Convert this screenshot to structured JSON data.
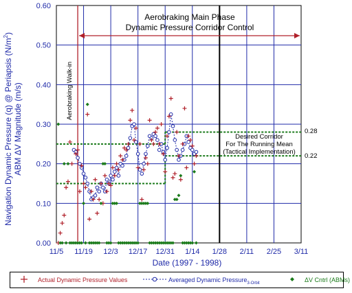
{
  "chart_data": {
    "type": "scatter",
    "title": "Aerobraking Main Phase",
    "subtitle": "Dynamic Pressure Corridor Control",
    "xlabel": "Date (1997 - 1998)",
    "ylabel_line1": "Navigation Dynamic Pressure (q) @ Periapsis (N/m",
    "ylabel_sup": "2",
    "ylabel_close": ")",
    "ylabel_line2": "ABM ΔV Magnitude (m/s)",
    "ylim": [
      0,
      0.6
    ],
    "xlim": [
      "11/5",
      "3/11"
    ],
    "x_tick_labels": [
      "11/5",
      "11/19",
      "12/3",
      "12/17",
      "12/31",
      "1/14",
      "1/28",
      "2/11",
      "2/25",
      "3/11"
    ],
    "y_tick_labels": [
      "0.00",
      "0.10",
      "0.20",
      "0.30",
      "0.40",
      "0.50",
      "0.60"
    ],
    "annotations": {
      "walk_in": "Aerobraking Walk-in",
      "corridor_line1": "Desired Corridor",
      "corridor_line2": "For The Running Mean",
      "corridor_line3": "(Tactical Implementation)",
      "upper_bound_label": "0.28",
      "lower_bound_label": "0.22"
    },
    "legend": {
      "actual": "Actual Dynamic Pressure Values",
      "averaged": "Averaged Dynamic Pressure",
      "averaged_sub": "3-Orbit",
      "dv": "ΔV Cntrl (ABMs)"
    },
    "series": [
      {
        "name": "Actual Dynamic Pressure Values",
        "marker": "plus",
        "color": "#b0202a",
        "points": [
          [
            1,
            0.0
          ],
          [
            2,
            0.025
          ],
          [
            3,
            0.05
          ],
          [
            4,
            0.07
          ],
          [
            5,
            0.14
          ],
          [
            6,
            0.155
          ],
          [
            7,
            0.255
          ],
          [
            8,
            0.2
          ],
          [
            10,
            0.225
          ],
          [
            11,
            0.235
          ],
          [
            12,
            0.13
          ],
          [
            13,
            0.195
          ],
          [
            14,
            0.15
          ],
          [
            15,
            0.14
          ],
          [
            16,
            0.325
          ],
          [
            17,
            0.06
          ],
          [
            18,
            0.13
          ],
          [
            19,
            0.11
          ],
          [
            20,
            0.16
          ],
          [
            21,
            0.075
          ],
          [
            22,
            0.11
          ],
          [
            23,
            0.15
          ],
          [
            24,
            0.1
          ],
          [
            25,
            0.17
          ],
          [
            26,
            0.13
          ],
          [
            27,
            0.15
          ],
          [
            28,
            0.145
          ],
          [
            29,
            0.19
          ],
          [
            30,
            0.17
          ],
          [
            31,
            0.2
          ],
          [
            32,
            0.185
          ],
          [
            33,
            0.22
          ],
          [
            34,
            0.21
          ],
          [
            35,
            0.24
          ],
          [
            36,
            0.235
          ],
          [
            37,
            0.25
          ],
          [
            38,
            0.31
          ],
          [
            39,
            0.335
          ],
          [
            40,
            0.26
          ],
          [
            41,
            0.29
          ],
          [
            42,
            0.19
          ],
          [
            43,
            0.25
          ],
          [
            44,
            0.11
          ],
          [
            45,
            0.185
          ],
          [
            46,
            0.215
          ],
          [
            47,
            0.2
          ],
          [
            48,
            0.31
          ],
          [
            49,
            0.26
          ],
          [
            50,
            0.25
          ],
          [
            51,
            0.28
          ],
          [
            52,
            0.29
          ],
          [
            53,
            0.25
          ],
          [
            54,
            0.3
          ],
          [
            55,
            0.225
          ],
          [
            56,
            0.18
          ],
          [
            57,
            0.27
          ],
          [
            58,
            0.32
          ],
          [
            59,
            0.365
          ],
          [
            60,
            0.165
          ],
          [
            61,
            0.175
          ],
          [
            62,
            0.28
          ],
          [
            63,
            0.22
          ],
          [
            64,
            0.16
          ],
          [
            65,
            0.25
          ],
          [
            66,
            0.34
          ],
          [
            67,
            0.19
          ],
          [
            68,
            0.27
          ],
          [
            69,
            0.26
          ],
          [
            70,
            0.245
          ],
          [
            71,
            0.2
          ],
          [
            72,
            0.22
          ]
        ]
      },
      {
        "name": "Averaged Dynamic Pressure",
        "marker": "circle-dotted",
        "color": "#1f2aa8",
        "points": [
          [
            9,
            0.235
          ],
          [
            10,
            0.23
          ],
          [
            11,
            0.215
          ],
          [
            12,
            0.2
          ],
          [
            13,
            0.19
          ],
          [
            14,
            0.175
          ],
          [
            15,
            0.165
          ],
          [
            16,
            0.15
          ],
          [
            17,
            0.13
          ],
          [
            18,
            0.11
          ],
          [
            19,
            0.115
          ],
          [
            20,
            0.12
          ],
          [
            21,
            0.14
          ],
          [
            22,
            0.13
          ],
          [
            23,
            0.15
          ],
          [
            24,
            0.14
          ],
          [
            25,
            0.13
          ],
          [
            26,
            0.16
          ],
          [
            27,
            0.15
          ],
          [
            28,
            0.17
          ],
          [
            29,
            0.16
          ],
          [
            30,
            0.18
          ],
          [
            31,
            0.19
          ],
          [
            32,
            0.17
          ],
          [
            33,
            0.2
          ],
          [
            34,
            0.195
          ],
          [
            35,
            0.21
          ],
          [
            36,
            0.22
          ],
          [
            37,
            0.24
          ],
          [
            38,
            0.265
          ],
          [
            39,
            0.295
          ],
          [
            40,
            0.3
          ],
          [
            41,
            0.255
          ],
          [
            42,
            0.225
          ],
          [
            43,
            0.185
          ],
          [
            44,
            0.175
          ],
          [
            45,
            0.2
          ],
          [
            46,
            0.225
          ],
          [
            47,
            0.245
          ],
          [
            48,
            0.27
          ],
          [
            49,
            0.265
          ],
          [
            50,
            0.275
          ],
          [
            51,
            0.27
          ],
          [
            52,
            0.26
          ],
          [
            53,
            0.235
          ],
          [
            54,
            0.25
          ],
          [
            55,
            0.23
          ],
          [
            56,
            0.21
          ],
          [
            57,
            0.24
          ],
          [
            58,
            0.28
          ],
          [
            59,
            0.325
          ],
          [
            60,
            0.295
          ],
          [
            61,
            0.26
          ],
          [
            62,
            0.235
          ],
          [
            63,
            0.21
          ],
          [
            64,
            0.22
          ],
          [
            65,
            0.235
          ],
          [
            66,
            0.25
          ],
          [
            67,
            0.27
          ],
          [
            68,
            0.255
          ],
          [
            69,
            0.24
          ],
          [
            70,
            0.235
          ],
          [
            71,
            0.225
          ],
          [
            72,
            0.23
          ]
        ]
      },
      {
        "name": "ΔV Cntrl (ABMs)",
        "marker": "diamond",
        "color": "#1a7a1a",
        "points": [
          [
            1,
            0.3
          ],
          [
            2,
            0.0
          ],
          [
            3,
            0.0
          ],
          [
            4,
            0.2
          ],
          [
            5,
            0.0
          ],
          [
            6,
            0.2
          ],
          [
            7,
            0.0
          ],
          [
            8,
            0.0
          ],
          [
            9,
            0.0
          ],
          [
            10,
            0.0
          ],
          [
            11,
            0.0
          ],
          [
            12,
            0.0
          ],
          [
            13,
            0.0
          ],
          [
            14,
            0.1
          ],
          [
            15,
            0.0
          ],
          [
            16,
            0.35
          ],
          [
            17,
            0.0
          ],
          [
            18,
            0.0
          ],
          [
            19,
            0.0
          ],
          [
            20,
            0.0
          ],
          [
            21,
            0.0
          ],
          [
            22,
            0.0
          ],
          [
            23,
            0.1
          ],
          [
            24,
            0.2
          ],
          [
            25,
            0.2
          ],
          [
            26,
            0.0
          ],
          [
            27,
            0.0
          ],
          [
            28,
            0.0
          ],
          [
            29,
            0.1
          ],
          [
            30,
            0.1
          ],
          [
            31,
            0.1
          ],
          [
            32,
            0.0
          ],
          [
            33,
            0.0
          ],
          [
            34,
            0.0
          ],
          [
            35,
            0.0
          ],
          [
            36,
            0.0
          ],
          [
            37,
            0.0
          ],
          [
            38,
            0.0
          ],
          [
            39,
            0.0
          ],
          [
            40,
            0.0
          ],
          [
            41,
            0.0
          ],
          [
            42,
            0.0
          ],
          [
            43,
            0.1
          ],
          [
            44,
            0.1
          ],
          [
            45,
            0.1
          ],
          [
            46,
            0.1
          ],
          [
            47,
            0.1
          ],
          [
            48,
            0.0
          ],
          [
            49,
            0.0
          ],
          [
            50,
            0.0
          ],
          [
            51,
            0.0
          ],
          [
            52,
            0.0
          ],
          [
            53,
            0.0
          ],
          [
            54,
            0.0
          ],
          [
            55,
            0.0
          ],
          [
            56,
            0.0
          ],
          [
            57,
            0.0
          ],
          [
            58,
            0.0
          ],
          [
            59,
            0.0
          ],
          [
            60,
            0.0
          ],
          [
            61,
            0.11
          ],
          [
            62,
            0.11
          ],
          [
            63,
            0.12
          ],
          [
            64,
            0.17
          ],
          [
            65,
            0.0
          ],
          [
            66,
            0.0
          ],
          [
            67,
            0.0
          ],
          [
            68,
            0.0
          ],
          [
            69,
            0.0
          ],
          [
            70,
            0.0
          ],
          [
            71,
            0.18
          ],
          [
            72,
            0.0
          ]
        ]
      }
    ],
    "corridor_upper": 0.28,
    "corridor_lower": 0.22,
    "early_corridor_upper": 0.25,
    "early_corridor_lower": 0.15
  }
}
